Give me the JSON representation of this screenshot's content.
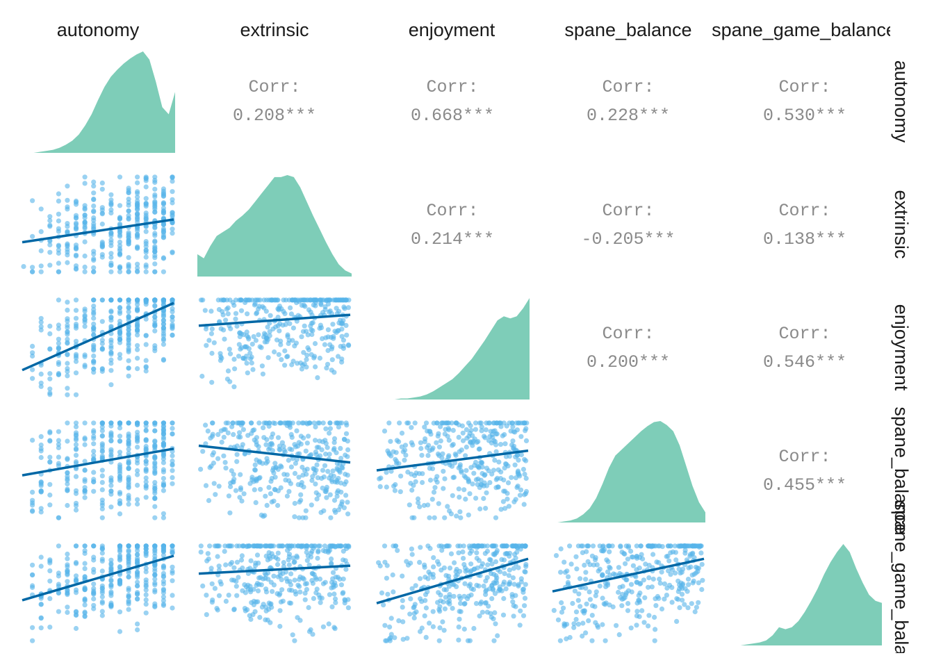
{
  "chart_data": {
    "type": "scatter-matrix",
    "title": "",
    "variables": [
      "autonomy",
      "extrinsic",
      "enjoyment",
      "spane_balance",
      "spane_game_balance"
    ],
    "column_labels": [
      "autonomy",
      "extrinsic",
      "enjoyment",
      "spane_balance",
      "spane_game_balance"
    ],
    "row_labels": [
      "autonomy",
      "extrinsic",
      "enjoyment",
      "spane_balance",
      "spane_game_balance"
    ],
    "correlation_title": "Corr:",
    "correlations": [
      {
        "row": 0,
        "col": 1,
        "value": "0.208***"
      },
      {
        "row": 0,
        "col": 2,
        "value": "0.668***"
      },
      {
        "row": 0,
        "col": 3,
        "value": "0.228***"
      },
      {
        "row": 0,
        "col": 4,
        "value": "0.530***"
      },
      {
        "row": 1,
        "col": 2,
        "value": "0.214***"
      },
      {
        "row": 1,
        "col": 3,
        "value": "-0.205***"
      },
      {
        "row": 1,
        "col": 4,
        "value": "0.138***"
      },
      {
        "row": 2,
        "col": 3,
        "value": "0.200***"
      },
      {
        "row": 2,
        "col": 4,
        "value": "0.546***"
      },
      {
        "row": 3,
        "col": 4,
        "value": "0.455***"
      }
    ],
    "density_fill": "#7ecdb8",
    "point_color": "#56b4e9",
    "fit_line_color": "#0067a5",
    "diagonal_densities": [
      [
        0.0,
        0.0,
        0.0,
        0.01,
        0.02,
        0.03,
        0.05,
        0.08,
        0.12,
        0.18,
        0.27,
        0.38,
        0.52,
        0.65,
        0.75,
        0.82,
        0.88,
        0.93,
        0.97,
        1.0,
        0.92,
        0.7,
        0.45,
        0.38,
        0.6
      ],
      [
        0.22,
        0.18,
        0.3,
        0.4,
        0.44,
        0.48,
        0.55,
        0.6,
        0.66,
        0.74,
        0.82,
        0.9,
        0.98,
        0.98,
        1.0,
        0.98,
        0.88,
        0.74,
        0.6,
        0.47,
        0.34,
        0.22,
        0.12,
        0.06,
        0.03
      ],
      [
        0.0,
        0.0,
        0.0,
        0.0,
        0.01,
        0.01,
        0.02,
        0.03,
        0.05,
        0.08,
        0.12,
        0.16,
        0.2,
        0.26,
        0.33,
        0.4,
        0.49,
        0.58,
        0.68,
        0.78,
        0.82,
        0.8,
        0.82,
        0.9,
        1.0
      ],
      [
        0.0,
        0.0,
        0.01,
        0.02,
        0.04,
        0.08,
        0.14,
        0.24,
        0.38,
        0.54,
        0.66,
        0.72,
        0.78,
        0.84,
        0.9,
        0.95,
        0.99,
        1.0,
        0.96,
        0.9,
        0.76,
        0.56,
        0.36,
        0.2,
        0.1
      ],
      [
        0.0,
        0.0,
        0.0,
        0.01,
        0.02,
        0.03,
        0.05,
        0.1,
        0.18,
        0.16,
        0.18,
        0.24,
        0.33,
        0.44,
        0.56,
        0.7,
        0.82,
        0.92,
        1.0,
        0.92,
        0.76,
        0.62,
        0.5,
        0.44,
        0.42
      ]
    ],
    "scatter_fits": [
      {
        "row": 1,
        "col": 0,
        "y_start": 0.32,
        "y_end": 0.55,
        "spread": 0.5
      },
      {
        "row": 2,
        "col": 0,
        "y_start": 0.27,
        "y_end": 0.95,
        "spread": 0.5
      },
      {
        "row": 2,
        "col": 1,
        "y_start": 0.72,
        "y_end": 0.83,
        "spread": 0.6
      },
      {
        "row": 3,
        "col": 0,
        "y_start": 0.45,
        "y_end": 0.72,
        "spread": 0.6
      },
      {
        "row": 3,
        "col": 1,
        "y_start": 0.75,
        "y_end": 0.58,
        "spread": 0.6
      },
      {
        "row": 3,
        "col": 2,
        "y_start": 0.5,
        "y_end": 0.7,
        "spread": 0.6
      },
      {
        "row": 4,
        "col": 0,
        "y_start": 0.43,
        "y_end": 0.88,
        "spread": 0.5
      },
      {
        "row": 4,
        "col": 1,
        "y_start": 0.7,
        "y_end": 0.78,
        "spread": 0.6
      },
      {
        "row": 4,
        "col": 2,
        "y_start": 0.4,
        "y_end": 0.85,
        "spread": 0.6
      },
      {
        "row": 4,
        "col": 3,
        "y_start": 0.52,
        "y_end": 0.85,
        "spread": 0.6
      }
    ],
    "grid": false,
    "legend": "none"
  }
}
